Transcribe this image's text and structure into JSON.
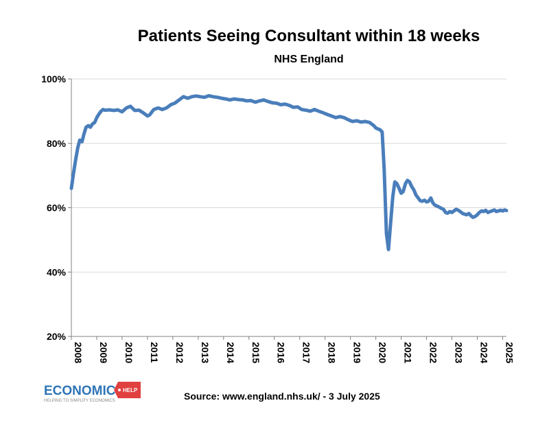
{
  "chart_data": {
    "type": "line",
    "title": "Patients Seeing Consultant within 18 weeks",
    "subtitle": "NHS England",
    "xlabel": "",
    "ylabel": "",
    "ylim": [
      20,
      100
    ],
    "yticks": [
      "20%",
      "40%",
      "60%",
      "80%",
      "100%"
    ],
    "ytick_values": [
      20,
      40,
      60,
      80,
      100
    ],
    "xlim": [
      2008,
      2025.15
    ],
    "xticks": [
      "2008",
      "2009",
      "2010",
      "2011",
      "2012",
      "2013",
      "2014",
      "2015",
      "2016",
      "2017",
      "2018",
      "2019",
      "2020",
      "2021",
      "2022",
      "2023",
      "2024",
      "2025"
    ],
    "grid": true,
    "line_color": "#4a7ebb",
    "series": [
      {
        "x": [
          2008.0,
          2008.08,
          2008.17,
          2008.25,
          2008.33,
          2008.42,
          2008.5,
          2008.58,
          2008.67,
          2008.75,
          2008.83,
          2008.92,
          2009.0,
          2009.08,
          2009.17,
          2009.25,
          2009.33,
          2009.5,
          2009.67,
          2009.83,
          2010.0,
          2010.17,
          2010.33,
          2010.5,
          2010.67,
          2010.83,
          2011.0,
          2011.08,
          2011.25,
          2011.42,
          2011.58,
          2011.75,
          2011.92,
          2012.08,
          2012.25,
          2012.42,
          2012.58,
          2012.75,
          2012.92,
          2013.08,
          2013.25,
          2013.42,
          2013.58,
          2013.75,
          2013.92,
          2014.08,
          2014.25,
          2014.42,
          2014.58,
          2014.75,
          2014.92,
          2015.08,
          2015.25,
          2015.42,
          2015.58,
          2015.75,
          2015.92,
          2016.08,
          2016.25,
          2016.42,
          2016.58,
          2016.75,
          2016.92,
          2017.08,
          2017.25,
          2017.42,
          2017.58,
          2017.75,
          2017.92,
          2018.08,
          2018.25,
          2018.42,
          2018.58,
          2018.75,
          2018.92,
          2019.08,
          2019.25,
          2019.42,
          2019.58,
          2019.75,
          2019.92,
          2020.0,
          2020.08,
          2020.17,
          2020.25,
          2020.33,
          2020.42,
          2020.5,
          2020.58,
          2020.67,
          2020.75,
          2020.83,
          2020.92,
          2021.0,
          2021.08,
          2021.17,
          2021.25,
          2021.33,
          2021.42,
          2021.5,
          2021.58,
          2021.67,
          2021.75,
          2021.83,
          2021.92,
          2022.0,
          2022.08,
          2022.17,
          2022.25,
          2022.33,
          2022.42,
          2022.5,
          2022.58,
          2022.67,
          2022.75,
          2022.83,
          2022.92,
          2023.0,
          2023.08,
          2023.17,
          2023.25,
          2023.33,
          2023.42,
          2023.5,
          2023.58,
          2023.67,
          2023.75,
          2023.83,
          2023.92,
          2024.0,
          2024.08,
          2024.17,
          2024.25,
          2024.33,
          2024.42,
          2024.5,
          2024.58,
          2024.67,
          2024.75,
          2024.83,
          2024.92,
          2025.0,
          2025.08,
          2025.15
        ],
        "y": [
          66.0,
          70.5,
          75.0,
          78.5,
          81.0,
          80.5,
          83.0,
          85.0,
          85.5,
          85.0,
          86.0,
          86.5,
          88.0,
          89.0,
          90.0,
          90.5,
          90.3,
          90.4,
          90.2,
          90.4,
          89.8,
          91.0,
          91.5,
          90.2,
          90.3,
          89.5,
          88.5,
          88.8,
          90.5,
          91.0,
          90.5,
          91.0,
          92.0,
          92.5,
          93.5,
          94.5,
          94.0,
          94.5,
          94.7,
          94.5,
          94.3,
          94.8,
          94.5,
          94.3,
          94.0,
          93.8,
          93.5,
          93.8,
          93.6,
          93.5,
          93.2,
          93.3,
          92.8,
          93.2,
          93.5,
          93.0,
          92.6,
          92.5,
          92.0,
          92.2,
          91.8,
          91.2,
          91.3,
          90.5,
          90.3,
          90.0,
          90.5,
          90.0,
          89.5,
          89.0,
          88.5,
          88.0,
          88.3,
          88.0,
          87.3,
          86.8,
          87.0,
          86.6,
          86.8,
          86.5,
          85.5,
          84.8,
          84.5,
          84.2,
          83.5,
          72.0,
          52.0,
          47.0,
          55.0,
          63.5,
          68.0,
          67.5,
          66.0,
          64.5,
          65.0,
          67.5,
          68.5,
          68.0,
          66.5,
          65.5,
          64.0,
          63.0,
          62.2,
          62.0,
          62.3,
          61.8,
          62.0,
          63.0,
          61.5,
          60.8,
          60.5,
          60.2,
          59.8,
          59.5,
          58.5,
          58.3,
          58.8,
          58.5,
          59.0,
          59.5,
          59.2,
          58.8,
          58.2,
          58.0,
          57.8,
          58.2,
          57.5,
          57.0,
          57.3,
          57.8,
          58.5,
          59.0,
          58.8,
          59.2,
          58.5,
          58.8,
          59.0,
          59.3,
          58.8,
          59.0,
          59.2,
          59.0,
          59.3,
          59.1
        ]
      }
    ]
  },
  "footer": {
    "source": "Source:  www.england.nhs.uk/ - 3 July 2025"
  },
  "logo": {
    "main": "ECONOMICS",
    "tag": "HELP",
    "tagline": "HELPING TO SIMPLIFY ECONOMICS",
    "main_color": "#2e75b6",
    "tag_color": "#e04040"
  }
}
